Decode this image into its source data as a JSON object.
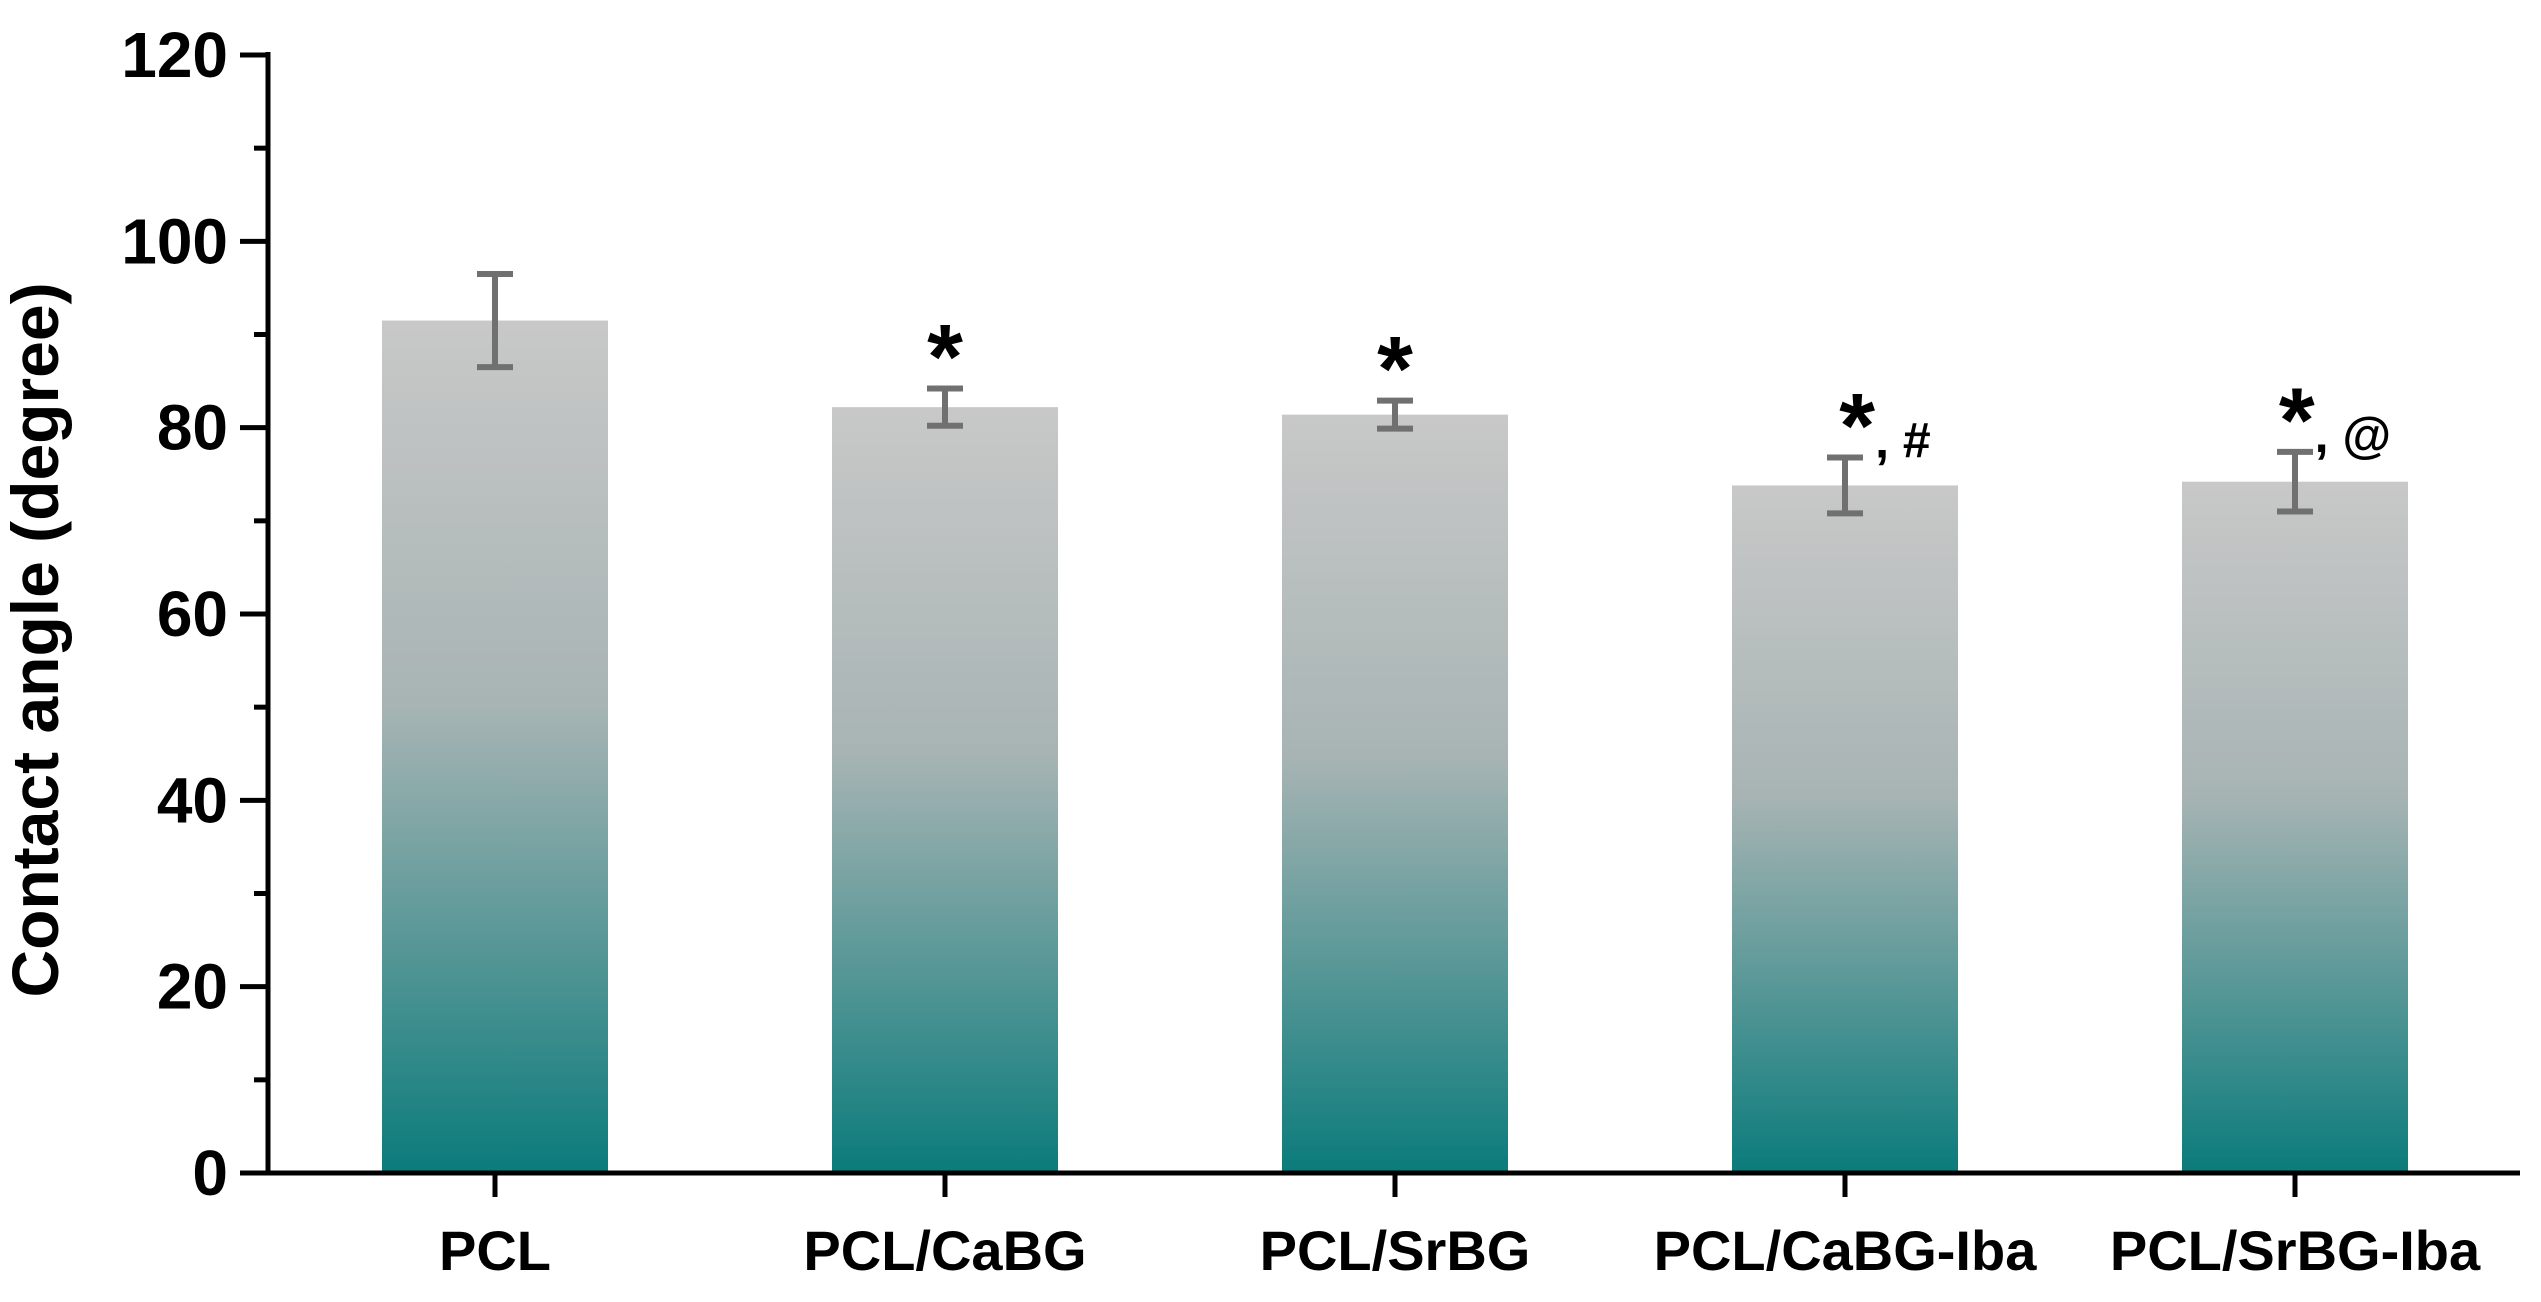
{
  "chart_data": {
    "type": "bar",
    "title": "",
    "xlabel": "",
    "ylabel": "Contact angle (degree)",
    "ylim": [
      0,
      120
    ],
    "yticks": [
      0,
      20,
      40,
      60,
      80,
      100,
      120
    ],
    "y_minor_step": 10,
    "grid": false,
    "categories": [
      "PCL",
      "PCL/CaBG",
      "PCL/SrBG",
      "PCL/CaBG-Iba",
      "PCL/SrBG-Iba"
    ],
    "values": [
      91.5,
      82.2,
      81.4,
      73.8,
      74.2
    ],
    "errors": [
      5.0,
      2.0,
      1.5,
      3.0,
      3.2
    ],
    "annotations": [
      {
        "main": "",
        "suffix": ""
      },
      {
        "main": "*",
        "suffix": ""
      },
      {
        "main": "*",
        "suffix": ""
      },
      {
        "main": "*",
        "suffix": ", #"
      },
      {
        "main": "*",
        "suffix": ", @"
      }
    ],
    "colors": {
      "bar_top": "#c8c8c8",
      "bar_bottom": "#0b7b7b",
      "error_bar": "#707070",
      "axis": "#000000",
      "text": "#000000"
    }
  }
}
